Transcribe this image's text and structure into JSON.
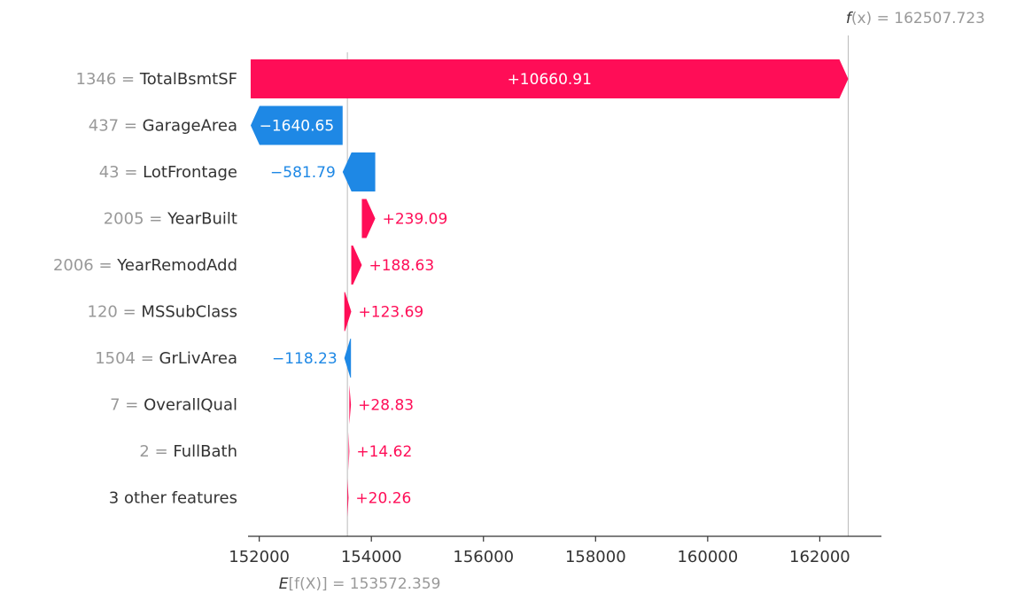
{
  "chart_data": {
    "type": "waterfall",
    "fx_label_f": "f",
    "fx_label_rest": "(x) = ",
    "fx_value": "162507.723",
    "fx": 162507.723,
    "base_label_e": "E",
    "base_label_rest": "[f(X)] = ",
    "base_value_text": "153572.359",
    "base": 153572.359,
    "xlim": [
      151800,
      163100
    ],
    "ticks": [
      152000,
      154000,
      156000,
      158000,
      160000,
      162000
    ],
    "tick_labels": [
      "152000",
      "154000",
      "156000",
      "158000",
      "160000",
      "162000"
    ],
    "colors": {
      "positive": "#ff0d57",
      "negative": "#1e88e5",
      "value_gray": "#999999",
      "label_dark": "#333333",
      "line": "#bbbbbb"
    },
    "features": [
      {
        "value_text": "1346 =",
        "name": "TotalBsmtSF",
        "shap": 10660.91,
        "label": "+10660.91"
      },
      {
        "value_text": "437 =",
        "name": "GarageArea",
        "shap": -1640.65,
        "label": "−1640.65"
      },
      {
        "value_text": "43 =",
        "name": "LotFrontage",
        "shap": -581.79,
        "label": "−581.79"
      },
      {
        "value_text": "2005 =",
        "name": "YearBuilt",
        "shap": 239.09,
        "label": "+239.09"
      },
      {
        "value_text": "2006 =",
        "name": "YearRemodAdd",
        "shap": 188.63,
        "label": "+188.63"
      },
      {
        "value_text": "120 =",
        "name": "MSSubClass",
        "shap": 123.69,
        "label": "+123.69"
      },
      {
        "value_text": "1504 =",
        "name": "GrLivArea",
        "shap": -118.23,
        "label": "−118.23"
      },
      {
        "value_text": "7 =",
        "name": "OverallQual",
        "shap": 28.83,
        "label": "+28.83"
      },
      {
        "value_text": "2 =",
        "name": "FullBath",
        "shap": 14.62,
        "label": "+14.62"
      },
      {
        "value_text": "",
        "name": "3 other features",
        "shap": 20.26,
        "label": "+20.26"
      }
    ]
  }
}
